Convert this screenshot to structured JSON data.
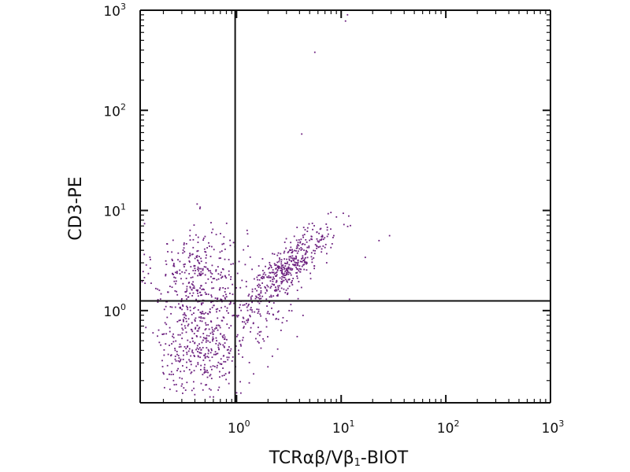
{
  "chart_data": {
    "type": "scatter",
    "title": "",
    "xlabel": {
      "parts": [
        {
          "text": "TCR",
          "style": "normal"
        },
        {
          "text": "αβ",
          "style": "normal"
        },
        {
          "text": "/V",
          "style": "normal"
        },
        {
          "text": "β",
          "style": "normal"
        },
        {
          "text": "1",
          "style": "sub"
        },
        {
          "text": "-BIOT",
          "style": "normal"
        }
      ]
    },
    "ylabel": "CD3-PE",
    "x_scale": "log",
    "y_scale": "log",
    "xlim": [
      0.12,
      1000
    ],
    "ylim": [
      0.12,
      1000
    ],
    "x_ticks": [
      {
        "base": "10",
        "exp": "0",
        "value": 1
      },
      {
        "base": "10",
        "exp": "1",
        "value": 10
      },
      {
        "base": "10",
        "exp": "2",
        "value": 100
      },
      {
        "base": "10",
        "exp": "3",
        "value": 1000
      }
    ],
    "y_ticks": [
      {
        "base": "10",
        "exp": "0",
        "value": 1
      },
      {
        "base": "10",
        "exp": "1",
        "value": 10
      },
      {
        "base": "10",
        "exp": "2",
        "value": 100
      },
      {
        "base": "10",
        "exp": "3",
        "value": 1000
      }
    ],
    "quadrant_gates": {
      "x": 0.97,
      "y": 1.25
    },
    "point_color": "#6b1f7e",
    "axis_color": "#111111",
    "populations": [
      {
        "center_x": 0.45,
        "center_y": 2.3,
        "spread_x_log": 0.22,
        "spread_y_log": 0.26,
        "count": 330,
        "corr": 0.0
      },
      {
        "center_x": 0.45,
        "center_y": 0.45,
        "spread_x_log": 0.22,
        "spread_y_log": 0.24,
        "count": 380,
        "corr": 0.0
      },
      {
        "center_x": 3.2,
        "center_y": 2.8,
        "spread_x_log": 0.2,
        "spread_y_log": 0.2,
        "count": 420,
        "corr": 0.82
      },
      {
        "center_x": 1.5,
        "center_y": 1.0,
        "spread_x_log": 0.22,
        "spread_y_log": 0.22,
        "count": 110,
        "corr": 0.3
      }
    ],
    "outliers": [
      [
        11.5,
        900
      ],
      [
        11,
        780
      ],
      [
        5.6,
        380
      ],
      [
        4.2,
        58
      ],
      [
        7.2,
        7.3
      ],
      [
        6.3,
        6.5
      ],
      [
        29,
        5.6
      ],
      [
        23,
        5.0
      ],
      [
        17,
        3.4
      ],
      [
        12,
        1.3
      ],
      [
        3.8,
        0.55
      ],
      [
        2.2,
        0.35
      ],
      [
        1.1,
        0.15
      ],
      [
        0.25,
        0.2
      ]
    ]
  }
}
